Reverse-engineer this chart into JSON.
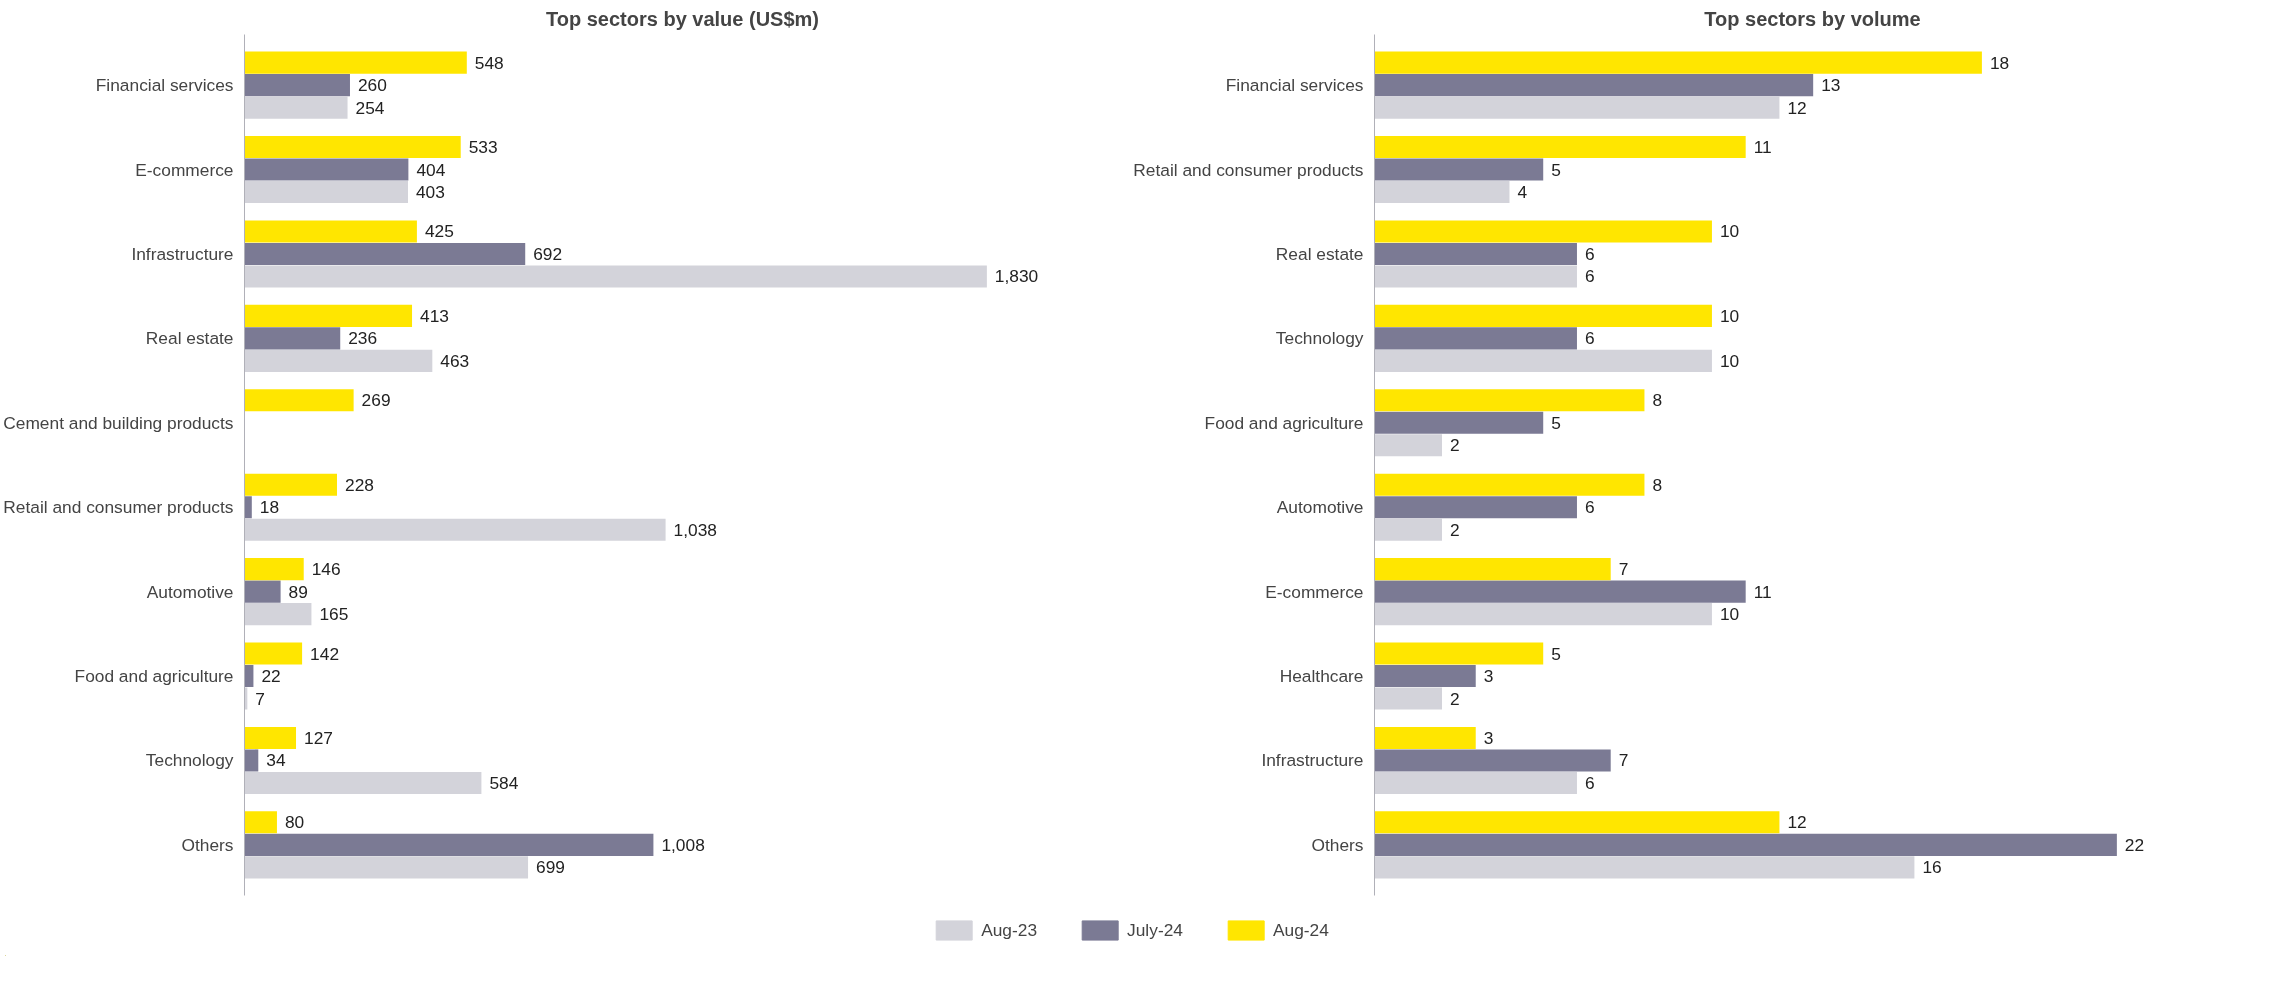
{
  "chart_data": [
    {
      "type": "bar",
      "orientation": "horizontal",
      "title": "Top sectors by value (US$m)",
      "categories": [
        "Financial services",
        "E-commerce",
        "Infrastructure",
        "Real estate",
        "Cement and building products",
        "Retail and consumer products",
        "Automotive",
        "Food and agriculture",
        "Technology",
        "Others"
      ],
      "series": [
        {
          "name": "Aug-23",
          "color": "#d3d3da",
          "values": [
            254,
            403,
            1830,
            463,
            null,
            1038,
            165,
            7,
            584,
            699
          ],
          "value_labels": [
            "254",
            "403",
            "1,830",
            "463",
            null,
            "1,038",
            "165",
            "7",
            "584",
            "699"
          ]
        },
        {
          "name": "July-24",
          "color": "#7b7a94",
          "values": [
            260,
            404,
            692,
            236,
            null,
            18,
            89,
            22,
            34,
            1008
          ],
          "value_labels": [
            "260",
            "404",
            "692",
            "236",
            null,
            "18",
            "89",
            "22",
            "34",
            "1,008"
          ]
        },
        {
          "name": "Aug-24",
          "color": "#ffe600",
          "values": [
            548,
            533,
            425,
            413,
            269,
            228,
            146,
            142,
            127,
            80
          ],
          "value_labels": [
            "548",
            "533",
            "425",
            "413",
            "269",
            "228",
            "146",
            "142",
            "127",
            "80"
          ]
        }
      ],
      "legend": "bottom",
      "grid": false
    },
    {
      "type": "bar",
      "orientation": "horizontal",
      "title": "Top sectors by volume",
      "categories": [
        "Financial services",
        "Retail and consumer products",
        "Real estate",
        "Technology",
        "Food and agriculture",
        "Automotive",
        "E-commerce",
        "Healthcare",
        "Infrastructure",
        "Others"
      ],
      "series": [
        {
          "color": "#d3d3da",
          "values": [
            12,
            4,
            6,
            10,
            2,
            2,
            10,
            2,
            6,
            16
          ]
        },
        {
          "color": "#7b7a94",
          "values": [
            13,
            5,
            6,
            6,
            5,
            6,
            11,
            3,
            7,
            22
          ]
        },
        {
          "color": "#ffe600",
          "values": [
            18,
            11,
            10,
            10,
            8,
            8,
            7,
            5,
            3,
            12
          ]
        }
      ],
      "data_labels": true,
      "grid": false
    }
  ]
}
